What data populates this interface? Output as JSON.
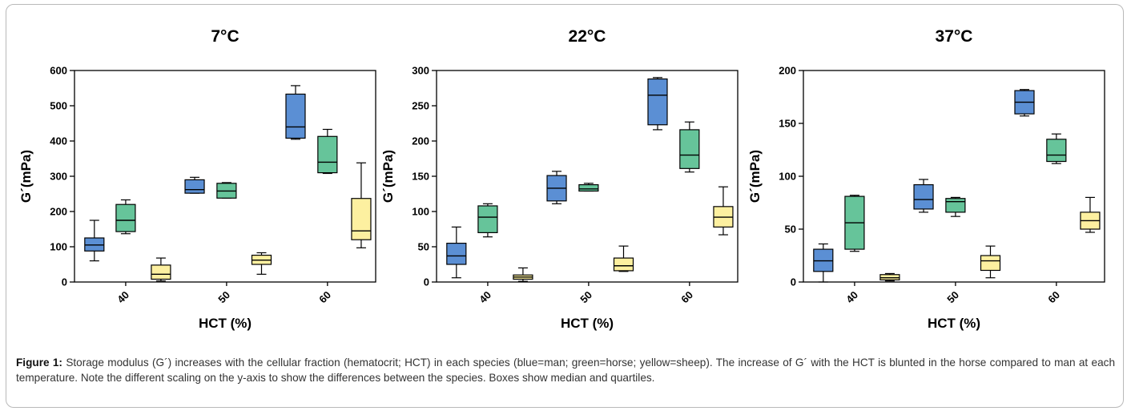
{
  "colors": {
    "man": "#5b8fd4",
    "horse": "#66c49a",
    "sheep": "#fdf0a0",
    "stroke": "#000000"
  },
  "caption": {
    "label": "Figure 1:",
    "text": "Storage modulus (G´) increases with the cellular fraction (hematocrit; HCT) in each species (blue=man; green=horse; yellow=sheep). The increase of G´ with the HCT is blunted in the horse compared to man at each temperature. Note the different scaling on the y-axis to show the differences between the species. Boxes show median and quartiles."
  },
  "chart_data": [
    {
      "type": "box",
      "title": "7°C",
      "xlabel": "HCT (%)",
      "ylabel": "G´(mPa)",
      "categories": [
        "40",
        "50",
        "60"
      ],
      "ylim": [
        0,
        600
      ],
      "yticks": [
        0,
        100,
        200,
        300,
        400,
        500,
        600
      ],
      "series": [
        {
          "color": "man",
          "boxes": [
            {
              "min": 60,
              "q1": 88,
              "median": 105,
              "q3": 125,
              "max": 175
            },
            {
              "min": 252,
              "q1": 252,
              "median": 262,
              "q3": 290,
              "max": 297
            },
            {
              "min": 405,
              "q1": 408,
              "median": 440,
              "q3": 533,
              "max": 557
            }
          ]
        },
        {
          "color": "horse",
          "boxes": [
            {
              "min": 137,
              "q1": 143,
              "median": 175,
              "q3": 220,
              "max": 233
            },
            {
              "min": 238,
              "q1": 238,
              "median": 258,
              "q3": 280,
              "max": 282
            },
            {
              "min": 308,
              "q1": 310,
              "median": 340,
              "q3": 413,
              "max": 433
            }
          ]
        },
        {
          "color": "sheep",
          "boxes": [
            {
              "min": 3,
              "q1": 8,
              "median": 22,
              "q3": 48,
              "max": 68
            },
            {
              "min": 22,
              "q1": 50,
              "median": 62,
              "q3": 76,
              "max": 83
            },
            {
              "min": 97,
              "q1": 120,
              "median": 145,
              "q3": 237,
              "max": 338
            }
          ]
        }
      ]
    },
    {
      "type": "box",
      "title": "22°C",
      "xlabel": "HCT (%)",
      "ylabel": "G´(mPa)",
      "categories": [
        "40",
        "50",
        "60"
      ],
      "ylim": [
        0,
        300
      ],
      "yticks": [
        0,
        50,
        100,
        150,
        200,
        250,
        300
      ],
      "series": [
        {
          "color": "man",
          "boxes": [
            {
              "min": 6,
              "q1": 25,
              "median": 37,
              "q3": 55,
              "max": 78
            },
            {
              "min": 111,
              "q1": 115,
              "median": 133,
              "q3": 151,
              "max": 157
            },
            {
              "min": 216,
              "q1": 223,
              "median": 265,
              "q3": 288,
              "max": 290
            }
          ]
        },
        {
          "color": "horse",
          "boxes": [
            {
              "min": 64,
              "q1": 70,
              "median": 92,
              "q3": 108,
              "max": 111
            },
            {
              "min": 129,
              "q1": 129,
              "median": 132,
              "q3": 138,
              "max": 140
            },
            {
              "min": 156,
              "q1": 161,
              "median": 180,
              "q3": 216,
              "max": 227
            }
          ]
        },
        {
          "color": "sheep",
          "boxes": [
            {
              "min": 1,
              "q1": 4,
              "median": 7,
              "q3": 10,
              "max": 20
            },
            {
              "min": 15,
              "q1": 16,
              "median": 23,
              "q3": 34,
              "max": 51
            },
            {
              "min": 67,
              "q1": 78,
              "median": 92,
              "q3": 107,
              "max": 135
            }
          ]
        }
      ]
    },
    {
      "type": "box",
      "title": "37°C",
      "xlabel": "HCT (%)",
      "ylabel": "G´(mPa)",
      "categories": [
        "40",
        "50",
        "60"
      ],
      "ylim": [
        0,
        200
      ],
      "yticks": [
        0,
        50,
        100,
        150,
        200
      ],
      "series": [
        {
          "color": "man",
          "boxes": [
            {
              "min": 0,
              "q1": 10,
              "median": 20,
              "q3": 31,
              "max": 36
            },
            {
              "min": 66,
              "q1": 69,
              "median": 78,
              "q3": 92,
              "max": 97
            },
            {
              "min": 157,
              "q1": 159,
              "median": 170,
              "q3": 181,
              "max": 182
            }
          ]
        },
        {
          "color": "horse",
          "boxes": [
            {
              "min": 29,
              "q1": 31,
              "median": 56,
              "q3": 81,
              "max": 82
            },
            {
              "min": 62,
              "q1": 66,
              "median": 76,
              "q3": 79,
              "max": 80
            },
            {
              "min": 112,
              "q1": 114,
              "median": 120,
              "q3": 135,
              "max": 140
            }
          ]
        },
        {
          "color": "sheep",
          "boxes": [
            {
              "min": 1,
              "q1": 2,
              "median": 4,
              "q3": 7,
              "max": 8
            },
            {
              "min": 4,
              "q1": 11,
              "median": 20,
              "q3": 25,
              "max": 34
            },
            {
              "min": 47,
              "q1": 50,
              "median": 58,
              "q3": 66,
              "max": 80
            }
          ]
        }
      ]
    }
  ]
}
